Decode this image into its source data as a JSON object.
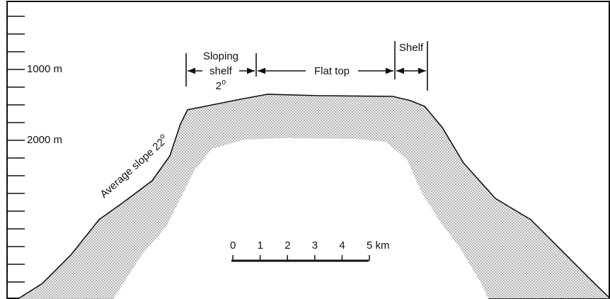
{
  "depth_labels": [
    "1000 m",
    "2000 m"
  ],
  "annotations": {
    "sloping_shelf": {
      "line1": "Sloping",
      "line2": "shelf",
      "angle": "2",
      "angle_sup": "o"
    },
    "flat_top": "Flat top",
    "shelf": "Shelf",
    "slope": {
      "text": "Average slope 22",
      "sup": "o"
    }
  },
  "scale_bar": {
    "labels": [
      "0",
      "1",
      "2",
      "3",
      "4",
      "5 km"
    ]
  }
}
